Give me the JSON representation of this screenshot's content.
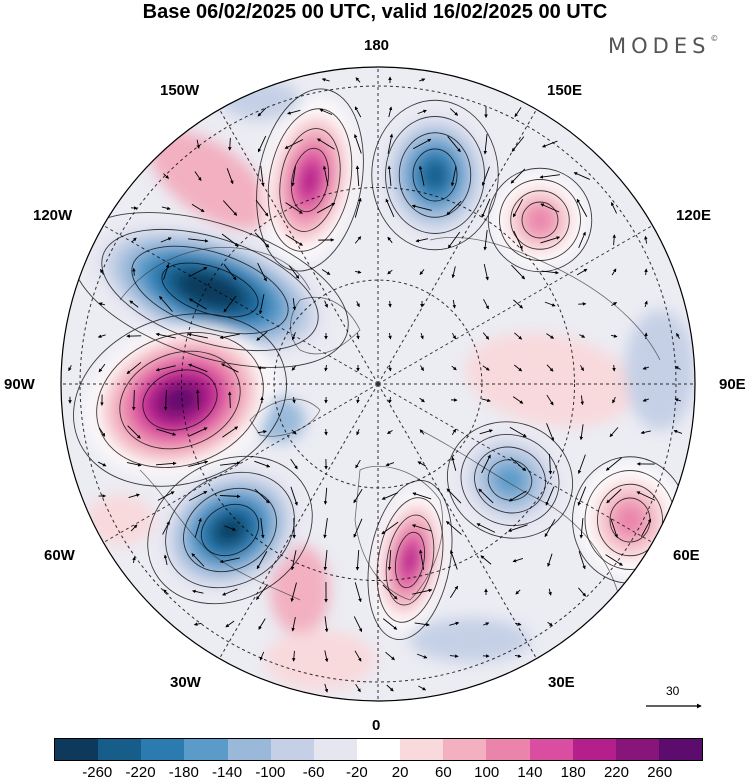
{
  "title": "Base 06/02/2025 00 UTC, valid 16/02/2025 00 UTC",
  "brand": "MODES",
  "brand_mark": "©",
  "longitude_labels": {
    "lon_180": "180",
    "lon_150w": "150W",
    "lon_150e": "150E",
    "lon_120w": "120W",
    "lon_120e": "120E",
    "lon_90w": "90W",
    "lon_90e": "90E",
    "lon_60w": "60W",
    "lon_60e": "60E",
    "lon_30w": "30W",
    "lon_30e": "30E",
    "lon_0": "0"
  },
  "reference_vector": {
    "value": "30"
  },
  "colorbar": {
    "colors": [
      "#0d3a5c",
      "#175d8a",
      "#2b7ab0",
      "#5b9bc9",
      "#9ab9da",
      "#c5d0e6",
      "#e6e6f1",
      "#ffffff",
      "#f8d9dc",
      "#f2b0c1",
      "#ea84ab",
      "#d94ea0",
      "#b51f8c",
      "#87157a",
      "#5c0c6c"
    ],
    "ticks": [
      "-260",
      "-220",
      "-180",
      "-140",
      "-100",
      "-60",
      "-20",
      "20",
      "60",
      "100",
      "140",
      "180",
      "220",
      "260"
    ]
  },
  "anomaly_features": [
    {
      "name": "low-150w-120w",
      "type": "negative",
      "level": -260
    },
    {
      "name": "high-90w",
      "type": "positive",
      "level": 260
    },
    {
      "name": "low-60w",
      "type": "negative",
      "level": -220
    },
    {
      "name": "high-150w",
      "type": "positive",
      "level": 200
    },
    {
      "name": "low-170e",
      "type": "negative",
      "level": -180
    },
    {
      "name": "high-20e",
      "type": "positive",
      "level": 180
    },
    {
      "name": "high-130e",
      "type": "positive",
      "level": 100
    },
    {
      "name": "high-60e",
      "type": "positive",
      "level": 100
    },
    {
      "name": "low-45e",
      "type": "negative",
      "level": -100
    }
  ]
}
